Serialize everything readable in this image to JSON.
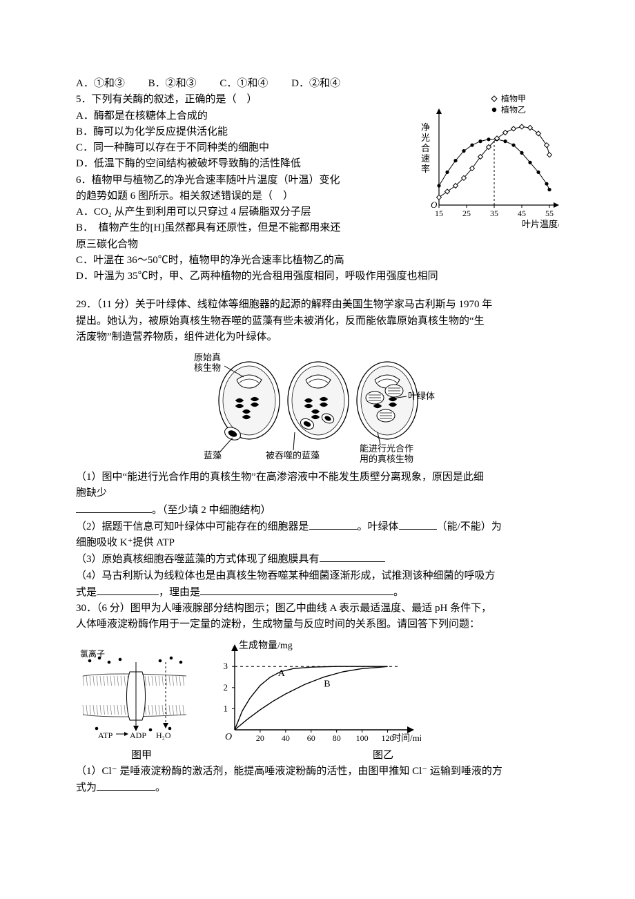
{
  "q4_options": {
    "A": "A．①和③",
    "B": "B．②和③",
    "C": "C．①和④",
    "D": "D．②和④"
  },
  "q5": {
    "stem": "5．下列有关酶的叙述，正确的是（　）",
    "A": "A．酶都是在核糖体上合成的",
    "B": "B．酶可以为化学反应提供活化能",
    "C": "C．同一种酶可以存在于不同种类的细胞中",
    "D": "D．低温下酶的空间结构被破坏导致酶的活性降低"
  },
  "q6": {
    "stem1": "6．植物甲与植物乙的净光合速率随叶片温度（叶温）变化",
    "stem2": "的趋势如题 6 图所示。相关叙述错误的是（　）",
    "A": "A．CO₂ 从产生到利用可以只穿过 4 层磷脂双分子层",
    "B1": "B．　植物产生的[H]虽然都具有还原性，但是不能都用来还",
    "B2": "原三碳化合物",
    "C": "C．叶温在 36～50℃时，植物甲的净光合速率比植物乙的高",
    "D": "D．叶温为 35℃时，甲、乙两种植物的光合租用强度相同，呼吸作用强度也相同"
  },
  "chart6": {
    "type": "line",
    "x_ticks": [
      15,
      25,
      35,
      45,
      55
    ],
    "x_label": "叶片温度/℃",
    "y_label": "净光合速率",
    "axis_color": "#000000",
    "grid_color": "#ffffff",
    "intersection_x": 35,
    "series_jia": {
      "name": "植物甲",
      "marker": "diamond-open",
      "color": "#000000",
      "points": [
        [
          15,
          8
        ],
        [
          18,
          14
        ],
        [
          21,
          20
        ],
        [
          24,
          28
        ],
        [
          27,
          38
        ],
        [
          30,
          50
        ],
        [
          33,
          60
        ],
        [
          36,
          69
        ],
        [
          39,
          75
        ],
        [
          42,
          79
        ],
        [
          45,
          81
        ],
        [
          48,
          80
        ],
        [
          51,
          74
        ],
        [
          54,
          62
        ],
        [
          55,
          52
        ]
      ]
    },
    "series_yi": {
      "name": "植物乙",
      "marker": "circle-filled",
      "color": "#000000",
      "points": [
        [
          15,
          20
        ],
        [
          18,
          34
        ],
        [
          21,
          46
        ],
        [
          24,
          56
        ],
        [
          27,
          62
        ],
        [
          30,
          66
        ],
        [
          33,
          68
        ],
        [
          36,
          68
        ],
        [
          39,
          66
        ],
        [
          42,
          62
        ],
        [
          45,
          54
        ],
        [
          48,
          44
        ],
        [
          51,
          34
        ],
        [
          54,
          22
        ],
        [
          55,
          16
        ]
      ]
    },
    "legend": {
      "jia": "植物甲",
      "yi": "植物乙"
    }
  },
  "q29": {
    "stem1": "29．（11 分）关于叶绿体、线粒体等细胞器的起源的解释由美国生物学家马古利斯与 1970 年",
    "stem2": "提出。她认为，被原始真核生物吞噬的蓝藻有些未被消化，反而能依靠原始真核生物的“生",
    "stem3": "活废物”制造营养物质，组件进化为叶绿体。",
    "labels": {
      "primitive": "原始真\n核生物",
      "cyano": "蓝藻",
      "engulfed": "被吞噬的蓝藻",
      "chloroplast": "叶绿体",
      "photosyn": "能进行光合作\n用的真核生物"
    },
    "p1a": "（1）图中“能进行光合作用的真核生物”在高渗溶液中不能发生质壁分离现象，原因是此细",
    "p1b": "胞缺少",
    "p1c": "。（至少填 2 中细胞结构）",
    "p2a": "（2）据题干信息可知叶绿体中可能存在的细胞器是",
    "p2b": "。叶绿体",
    "p2c": "（能/不能）为",
    "p2d": "细胞吸收 K⁺提供 ATP",
    "p3": "（3）原始真核细胞吞噬蓝藻的方式体现了细胞膜具有",
    "p4a": "（4）马古利斯认为线粒体也是由真核生物吞噬某种细菌逐渐形成，试推测该种细菌的呼吸方",
    "p4b": "式是",
    "p4c": "，理由是",
    "p4d": "。"
  },
  "q30": {
    "stem1": "30．（6 分）图甲为人唾液腺部分结构图示；图乙中曲线 A 表示最适温度、最适 pH 条件下，",
    "stem2": "人体唾液淀粉酶作用于一定量的淀粉，生成物量与反应时间的关系图。请回答下列问题：",
    "caption_a": "图甲",
    "caption_b": "图乙",
    "p1a": "（1）Cl⁻ 是唾液淀粉酶的激活剂，能提高唾液淀粉酶的活性，由图甲推知 Cl⁻ 运输到唾液的方",
    "p1b": "式为",
    "p1c": "。"
  },
  "chart30": {
    "type": "line",
    "y_label": "生成物量/mg",
    "x_label": "时间/min",
    "x_ticks": [
      20,
      40,
      60,
      80,
      100,
      120
    ],
    "y_ticks": [
      1,
      2,
      3
    ],
    "y_dash": 3,
    "axis_color": "#000000",
    "seriesA": {
      "name": "A",
      "points": [
        [
          0,
          0
        ],
        [
          6,
          0.9
        ],
        [
          12,
          1.5
        ],
        [
          20,
          2.1
        ],
        [
          28,
          2.5
        ],
        [
          36,
          2.75
        ],
        [
          46,
          2.9
        ],
        [
          60,
          2.97
        ],
        [
          80,
          3.0
        ],
        [
          120,
          3.0
        ]
      ]
    },
    "seriesB": {
      "name": "B",
      "points": [
        [
          0,
          0
        ],
        [
          10,
          0.5
        ],
        [
          20,
          0.95
        ],
        [
          30,
          1.35
        ],
        [
          40,
          1.7
        ],
        [
          55,
          2.15
        ],
        [
          70,
          2.5
        ],
        [
          85,
          2.75
        ],
        [
          100,
          2.9
        ],
        [
          115,
          2.97
        ],
        [
          120,
          3.0
        ]
      ]
    }
  },
  "fig30jia": {
    "cl_label": "氯离子",
    "atp": "ATP",
    "adp": "ADP",
    "h2o": "H₂O"
  }
}
